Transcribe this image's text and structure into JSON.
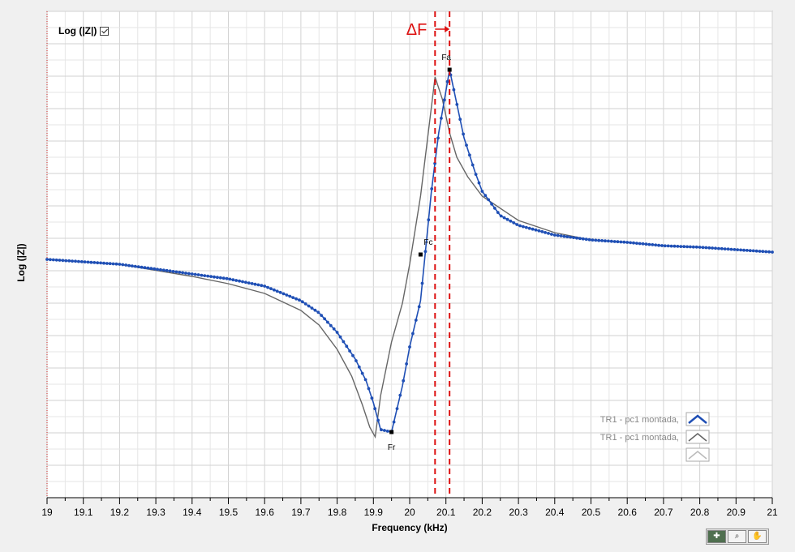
{
  "log_toggle": {
    "label": "Log (|Z|)",
    "checked": true
  },
  "delta_label": "ΔF",
  "toolbar": {
    "icons": [
      "cursor-icon",
      "zoom-icon",
      "pan-hand-icon"
    ]
  },
  "chart_data": {
    "type": "line",
    "xlabel": "Frequency (kHz)",
    "ylabel": "Log (|Z|)",
    "xlim": [
      19.0,
      21.0
    ],
    "x_ticks": [
      "19",
      "19.1",
      "19.2",
      "19.3",
      "19.4",
      "19.5",
      "19.6",
      "19.7",
      "19.8",
      "19.9",
      "20",
      "20.1",
      "20.2",
      "20.3",
      "20.4",
      "20.5",
      "20.6",
      "20.7",
      "20.8",
      "20.9",
      "21"
    ],
    "ylim": [
      0,
      100
    ],
    "grid": true,
    "legend": {
      "placement": "bottom-right",
      "entries": [
        {
          "label": "TR1 - pc1 montada,",
          "color": "#1f4fb5"
        },
        {
          "label": "TR1 - pc1 montada,",
          "color": "#666666"
        },
        {
          "label": "",
          "color": "#bbbbbb"
        }
      ]
    },
    "series": [
      {
        "name": "TR1 - pc1 montada,",
        "color": "#1f4fb5",
        "markers": true,
        "x": [
          19.0,
          19.2,
          19.4,
          19.5,
          19.6,
          19.7,
          19.75,
          19.8,
          19.85,
          19.88,
          19.9,
          19.92,
          19.95,
          19.98,
          20.0,
          20.03,
          20.06,
          20.08,
          20.11,
          20.13,
          20.15,
          20.18,
          20.2,
          20.25,
          20.3,
          20.4,
          20.5,
          20.6,
          20.7,
          20.8,
          20.9,
          21.0
        ],
        "y": [
          49.0,
          48.0,
          46.0,
          45.0,
          43.5,
          40.5,
          38.0,
          34.0,
          28.5,
          24.0,
          19.5,
          14.0,
          13.5,
          23.0,
          31.0,
          40.5,
          63.0,
          75.0,
          88.0,
          81.0,
          74.0,
          67.0,
          63.0,
          58.0,
          56.0,
          54.0,
          53.0,
          52.5,
          51.8,
          51.5,
          51.0,
          50.5
        ]
      },
      {
        "name": "TR1 - pc1 montada,",
        "color": "#666666",
        "markers": false,
        "x": [
          19.0,
          19.2,
          19.4,
          19.5,
          19.6,
          19.7,
          19.75,
          19.8,
          19.84,
          19.87,
          19.89,
          19.905,
          19.92,
          19.95,
          19.98,
          20.0,
          20.03,
          20.07,
          20.09,
          20.11,
          20.13,
          20.16,
          20.2,
          20.3,
          20.4,
          20.5,
          20.6,
          20.7,
          20.8,
          20.9,
          21.0
        ],
        "y": [
          49.0,
          48.0,
          45.5,
          44.0,
          42.0,
          38.5,
          35.5,
          30.5,
          25.0,
          19.0,
          14.5,
          12.5,
          21.0,
          32.0,
          40.0,
          48.0,
          62.0,
          86.5,
          82.0,
          75.0,
          70.0,
          66.0,
          62.0,
          57.0,
          54.5,
          53.0,
          52.5,
          51.8,
          51.5,
          51.0,
          50.5
        ]
      }
    ],
    "markers": [
      {
        "label": "Fr",
        "x": 19.95,
        "y": 13.5
      },
      {
        "label": "Fc",
        "x": 20.03,
        "y": 50.0
      },
      {
        "label": "Fa",
        "x": 20.11,
        "y": 88.0
      }
    ],
    "vlines": [
      20.07,
      20.11
    ]
  }
}
